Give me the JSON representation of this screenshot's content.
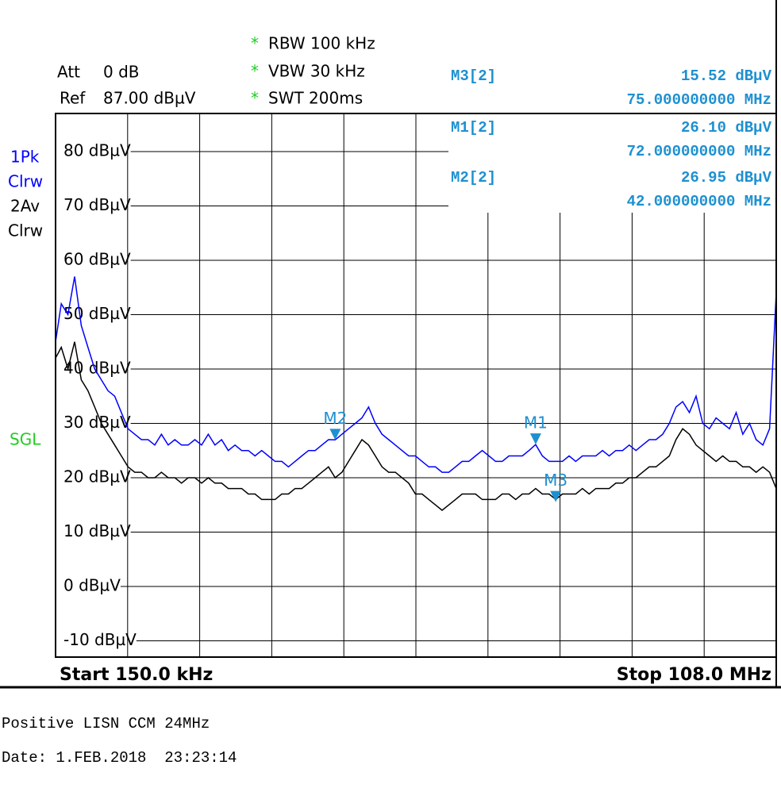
{
  "chart_data": {
    "type": "line",
    "settings": {
      "att_label": "Att",
      "att_value": "0 dB",
      "ref_label": "Ref",
      "ref_value": "87.00 dBµV",
      "rbw": "RBW 100 kHz",
      "vbw": "VBW 30 kHz",
      "swt": "SWT 200ms",
      "coupled_mark": "*",
      "sweep_mode": "SGL"
    },
    "start_label": "Start 150.0 kHz",
    "stop_label": "Stop 108.0 MHz",
    "xlim": [
      0.15,
      108
    ],
    "x_divisions": 10,
    "ylim": [
      -13,
      87
    ],
    "yticks": [
      {
        "value": 80,
        "label": "80 dBµV"
      },
      {
        "value": 70,
        "label": "70 dBµV"
      },
      {
        "value": 60,
        "label": "60 dBµV"
      },
      {
        "value": 50,
        "label": "50 dBµV"
      },
      {
        "value": 40,
        "label": "40 dBµV"
      },
      {
        "value": 30,
        "label": "30 dBµV"
      },
      {
        "value": 20,
        "label": "20 dBµV"
      },
      {
        "value": 10,
        "label": "10 dBµV"
      },
      {
        "value": 0,
        "label": "0 dBµV"
      },
      {
        "value": -10,
        "label": "-10 dBµV"
      }
    ],
    "grid": true,
    "x": [
      0.15,
      1,
      2,
      3,
      4,
      5,
      6,
      7,
      8,
      9,
      10,
      11,
      12,
      13,
      14,
      15,
      16,
      17,
      18,
      19,
      20,
      21,
      22,
      23,
      24,
      25,
      26,
      27,
      28,
      29,
      30,
      31,
      32,
      33,
      34,
      35,
      36,
      37,
      38,
      39,
      40,
      41,
      42,
      43,
      44,
      45,
      46,
      47,
      48,
      49,
      50,
      51,
      52,
      53,
      54,
      55,
      56,
      57,
      58,
      59,
      60,
      61,
      62,
      63,
      64,
      65,
      66,
      67,
      68,
      69,
      70,
      71,
      72,
      73,
      74,
      75,
      76,
      77,
      78,
      79,
      80,
      81,
      82,
      83,
      84,
      85,
      86,
      87,
      88,
      89,
      90,
      91,
      92,
      93,
      94,
      95,
      96,
      97,
      98,
      99,
      100,
      101,
      102,
      103,
      104,
      105,
      106,
      107,
      108
    ],
    "series": [
      {
        "name": "1Pk",
        "mode": "Clrw",
        "color": "#0000ff",
        "values": [
          45,
          52,
          50,
          57,
          48,
          44,
          40,
          38,
          36,
          35,
          32,
          29,
          28,
          27,
          27,
          26,
          28,
          26,
          27,
          26,
          26,
          27,
          26,
          28,
          26,
          27,
          25,
          26,
          25,
          25,
          24,
          25,
          24,
          23,
          23,
          22,
          23,
          24,
          25,
          25,
          26,
          27,
          26.95,
          28,
          29,
          30,
          31,
          33,
          30,
          28,
          27,
          26,
          25,
          24,
          24,
          23,
          22,
          22,
          21,
          21,
          22,
          23,
          23,
          24,
          25,
          24,
          23,
          23,
          24,
          24,
          24,
          25,
          26.1,
          24,
          23,
          23,
          23,
          24,
          23,
          24,
          24,
          24,
          25,
          24,
          25,
          25,
          26,
          25,
          26,
          27,
          27,
          28,
          30,
          33,
          34,
          32,
          35,
          30,
          29,
          31,
          30,
          29,
          32,
          28,
          30,
          27,
          26,
          29,
          54
        ]
      },
      {
        "name": "2Av",
        "mode": "Clrw",
        "color": "#000000",
        "values": [
          42,
          44,
          40,
          45,
          38,
          36,
          33,
          30,
          28,
          26,
          24,
          22,
          21,
          21,
          20,
          20,
          21,
          20,
          20,
          19,
          20,
          20,
          19,
          20,
          19,
          19,
          18,
          18,
          18,
          17,
          17,
          16,
          16,
          16,
          17,
          17,
          18,
          18,
          19,
          20,
          21,
          22,
          20,
          21,
          23,
          25,
          27,
          26,
          24,
          22,
          21,
          21,
          20,
          19,
          17,
          17,
          16,
          15,
          14,
          15,
          16,
          17,
          17,
          17,
          16,
          16,
          16,
          17,
          17,
          16,
          17,
          17,
          18,
          17,
          17,
          16,
          17,
          17,
          17,
          18,
          17,
          18,
          18,
          18,
          19,
          19,
          20,
          20,
          21,
          22,
          22,
          23,
          24,
          27,
          29,
          28,
          26,
          25,
          24,
          23,
          24,
          23,
          23,
          22,
          22,
          21,
          22,
          21,
          18
        ]
      }
    ],
    "marker_color": "#1e90d0",
    "markers": [
      {
        "name": "M3[2]",
        "plot_label": "M3",
        "level": 15.52,
        "level_label": "15.52 dBµV",
        "freq": 75,
        "freq_label": "75.000000000 MHz"
      },
      {
        "name": "M1[2]",
        "plot_label": "M1",
        "level": 26.1,
        "level_label": "26.10 dBµV",
        "freq": 72,
        "freq_label": "72.000000000 MHz"
      },
      {
        "name": "M2[2]",
        "plot_label": "M2",
        "level": 26.95,
        "level_label": "26.95 dBµV",
        "freq": 42,
        "freq_label": "42.000000000 MHz"
      }
    ]
  },
  "footer": {
    "title": "Positive LISN CCM 24MHz",
    "date": "Date: 1.FEB.2018  23:23:14"
  }
}
